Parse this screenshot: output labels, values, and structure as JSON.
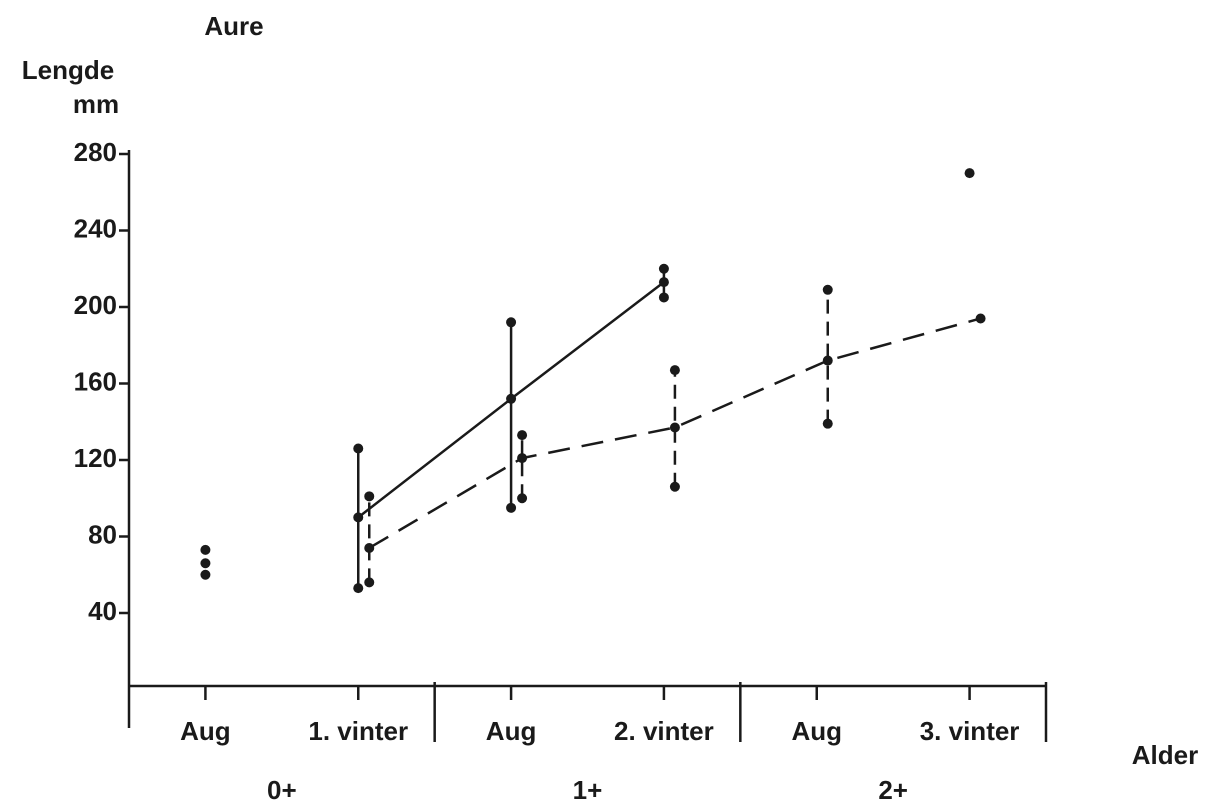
{
  "chart_data": {
    "type": "line",
    "title": "Aure",
    "ylabel": [
      "Lengde",
      "mm"
    ],
    "xlabel": "Alder",
    "categories": [
      "Aug",
      "1. vinter",
      "Aug",
      "2. vinter",
      "Aug",
      "3. vinter"
    ],
    "groups": [
      "0+",
      "1+",
      "2+"
    ],
    "ylim": [
      0,
      280
    ],
    "yticks": [
      40,
      80,
      120,
      160,
      200,
      240,
      280
    ],
    "series": [
      {
        "color": "#1a1a1a",
        "line_style": "solid",
        "whiskers": true,
        "values": [
          null,
          90,
          152,
          213,
          null,
          270
        ],
        "low": [
          null,
          53,
          95,
          205,
          null,
          null
        ],
        "high": [
          null,
          126,
          192,
          220,
          null,
          null
        ]
      },
      {
        "color": "#1a1a1a",
        "line_style": "dashed",
        "whiskers": true,
        "values": [
          null,
          74,
          121,
          137,
          172,
          194
        ],
        "low": [
          null,
          56,
          100,
          106,
          139,
          null
        ],
        "high": [
          null,
          101,
          133,
          167,
          209,
          null
        ]
      },
      {
        "color": "#1a1a1a",
        "line_style": "none",
        "whiskers": false,
        "values": [
          66,
          null,
          null,
          null,
          null,
          null
        ],
        "low": [
          60,
          null,
          null,
          null,
          null,
          null
        ],
        "high": [
          73,
          null,
          null,
          null,
          null,
          null
        ]
      }
    ]
  }
}
